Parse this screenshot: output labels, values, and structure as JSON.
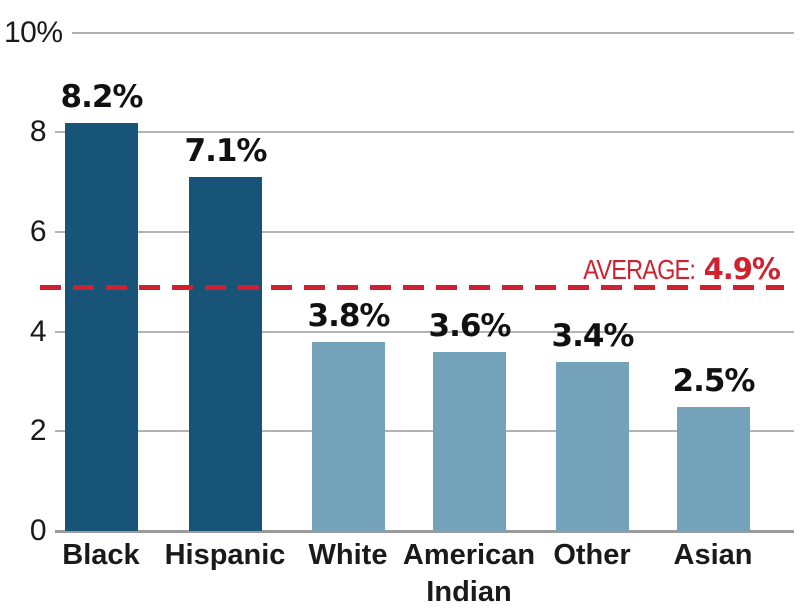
{
  "chart_data": {
    "type": "bar",
    "title": "",
    "xlabel": "",
    "ylabel": "",
    "categories": [
      "Black",
      "Hispanic",
      "White",
      "American Indian",
      "Other",
      "Asian"
    ],
    "values": [
      8.2,
      7.1,
      3.8,
      3.6,
      3.4,
      2.5
    ],
    "value_labels": [
      "8.2%",
      "7.1%",
      "3.8%",
      "3.6%",
      "3.4%",
      "2.5%"
    ],
    "y_ticks": [
      "10%",
      "8",
      "6",
      "4",
      "2",
      "0"
    ],
    "y_tick_values": [
      10,
      8,
      6,
      4,
      2,
      0
    ],
    "ylim": [
      0,
      10
    ],
    "grid": true,
    "legend_position": "none",
    "average": 4.9,
    "average_prefix": "AVERAGE:",
    "average_value": "4.9%",
    "bar_colors": [
      "#175477",
      "#175477",
      "#73a2ba",
      "#73a2ba",
      "#73a2ba",
      "#73a2ba"
    ],
    "colors": {
      "dark_bar": "#175477",
      "light_bar": "#73a2ba",
      "average_red": "#d02130",
      "gridline": "#b3b3b3",
      "axis_line": "#9b9b9b",
      "label_text": "#1a1a1a"
    }
  }
}
